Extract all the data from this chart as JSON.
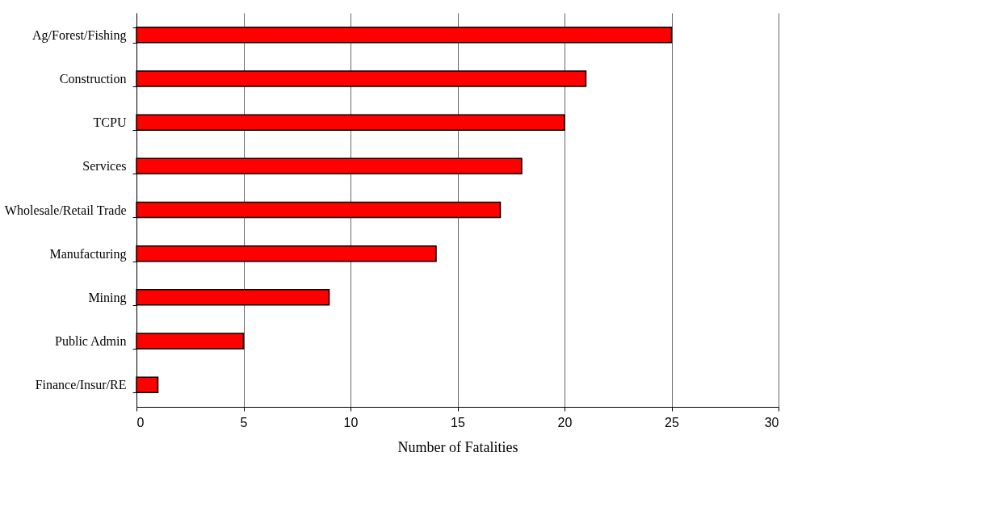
{
  "chart_data": {
    "type": "bar",
    "orientation": "horizontal",
    "xlabel": "Number of Fatalities",
    "categories": [
      "Ag/Forest/Fishing",
      "Construction",
      "TCPU",
      "Services",
      "Wholesale/Retail Trade",
      "Manufacturing",
      "Mining",
      "Public Admin",
      "Finance/Insur/RE"
    ],
    "values": [
      25,
      21,
      20,
      18,
      17,
      14,
      9,
      5,
      1
    ],
    "color": "#ff0000",
    "xlim": [
      0,
      30
    ],
    "xticks": [
      0,
      5,
      10,
      15,
      20,
      25,
      30
    ],
    "grid": "x"
  }
}
